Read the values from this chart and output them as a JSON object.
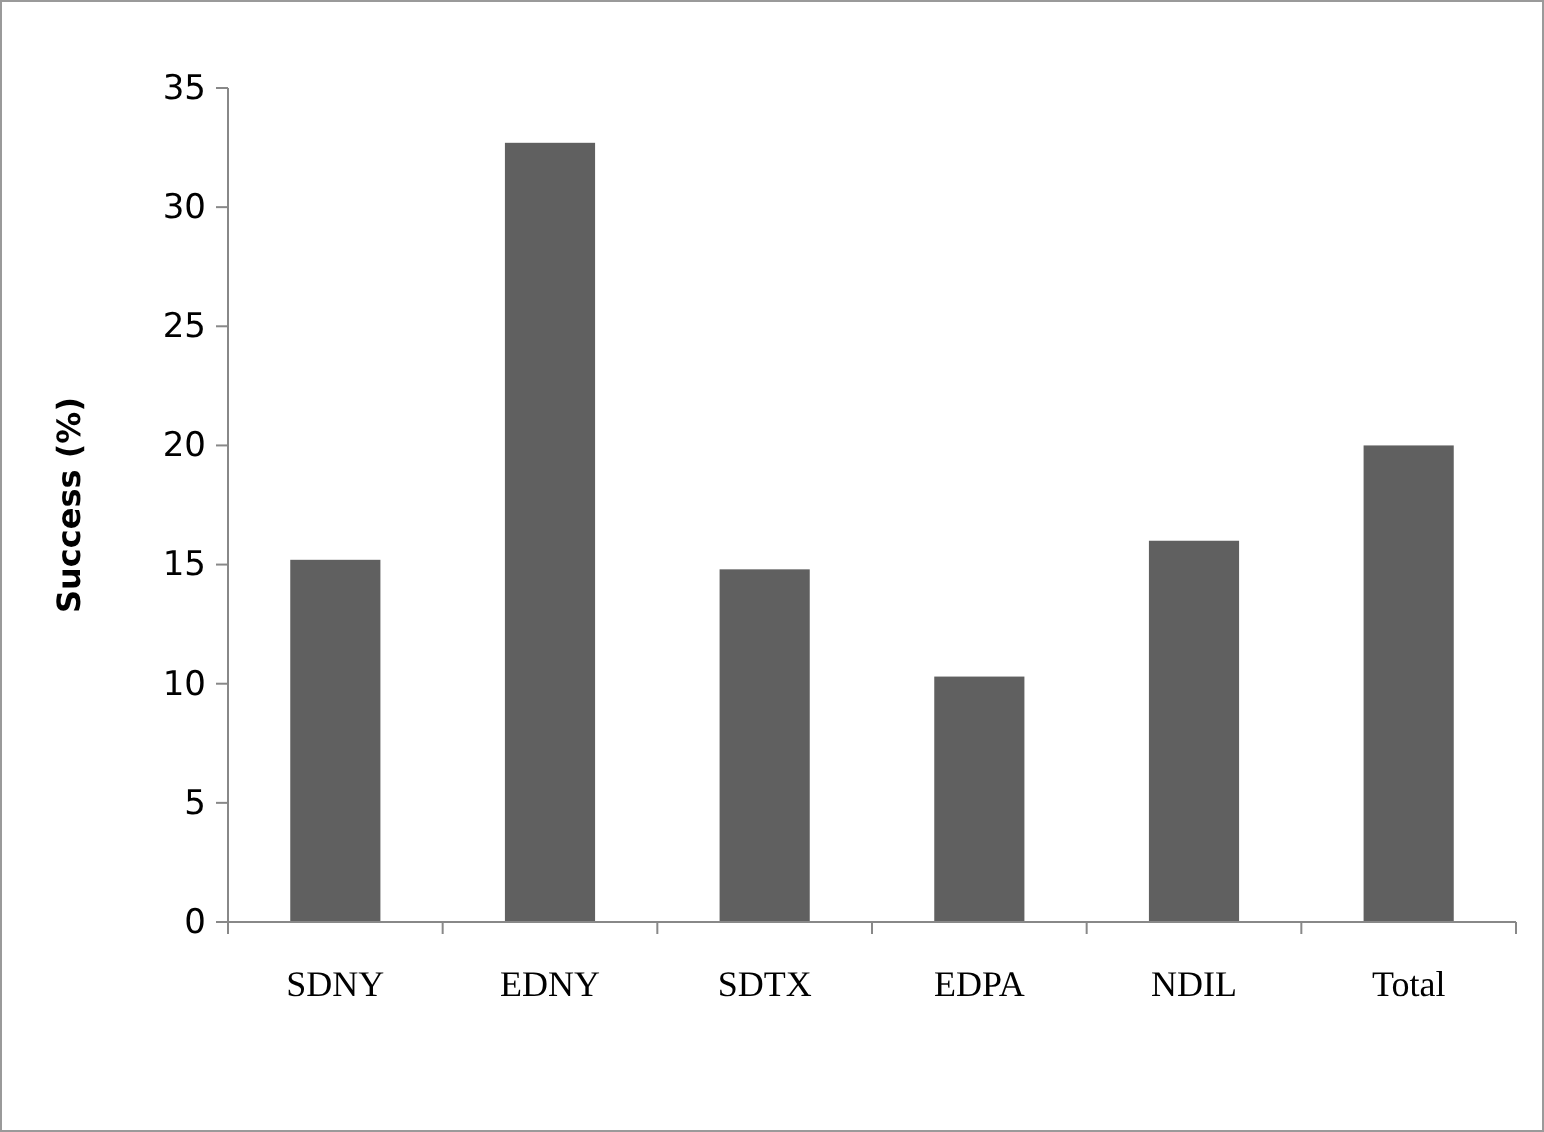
{
  "chart_data": {
    "type": "bar",
    "ylabel": "Success (%)",
    "categories": [
      "SDNY",
      "EDNY",
      "SDTX",
      "EDPA",
      "NDIL",
      "Total"
    ],
    "values": [
      15.2,
      32.7,
      14.8,
      10.3,
      16.0,
      20.0
    ],
    "color": "#606060",
    "ylim": [
      0,
      35
    ],
    "yticks": [
      0,
      5,
      10,
      15,
      20,
      25,
      30,
      35
    ],
    "grid": false
  }
}
